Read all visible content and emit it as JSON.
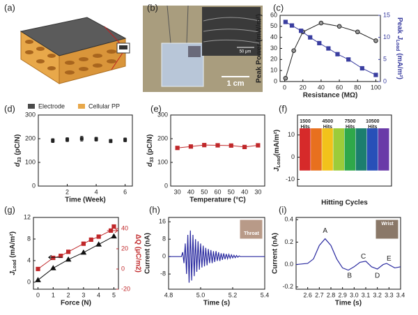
{
  "illustration": {
    "label": "(a)",
    "legend": [
      "Electrode",
      "Cellular PP"
    ]
  },
  "photo": {
    "label": "(b)",
    "inset_scale": "50 μm",
    "scale": "1 cm"
  },
  "chart_data": [
    {
      "type": "line",
      "panel": "(c)",
      "xlabel": "Resistance (MΩ)",
      "ylabel": "Peak Power (mW/m²)",
      "y2label": [
        {
          "t": "Peak "
        },
        {
          "t": "J",
          "s": "i"
        },
        {
          "t": "Load",
          "s": "sub"
        },
        {
          "t": " (mA/m²)"
        }
      ],
      "xlim": [
        -5,
        105
      ],
      "xticks": [
        0,
        20,
        40,
        60,
        80,
        100
      ],
      "ylim": [
        0,
        60
      ],
      "yticks": [
        0,
        10,
        20,
        30,
        40,
        50,
        60
      ],
      "y2lim": [
        0,
        15
      ],
      "y2ticks": [
        0,
        5,
        10,
        15
      ],
      "series": [
        {
          "color": "#222222",
          "marker": "circle",
          "x": [
            1,
            10,
            20,
            40,
            60,
            80,
            100
          ],
          "values": [
            3,
            28,
            45,
            53,
            50,
            45,
            37
          ]
        },
        {
          "color": "#3a3ea0",
          "marker": "square",
          "axis": "y2",
          "x": [
            1,
            8,
            18,
            28,
            38,
            48,
            58,
            70,
            85,
            100
          ],
          "values": [
            13.5,
            12.7,
            11.5,
            10,
            8.7,
            7.5,
            6.2,
            5,
            3,
            1.5
          ]
        }
      ]
    },
    {
      "type": "scatter",
      "panel": "(d)",
      "xlabel": "Time (Week)",
      "ylabel": [
        {
          "t": "d",
          "s": "i"
        },
        {
          "t": "33",
          "s": "sub"
        },
        {
          "t": " (pC/N)"
        }
      ],
      "xlim": [
        0,
        6.5
      ],
      "xticks": [
        2,
        4,
        6
      ],
      "ylim": [
        0,
        300
      ],
      "yticks": [
        0,
        100,
        200,
        300
      ],
      "color": "#222222",
      "x": [
        1,
        2,
        3,
        4,
        5,
        6
      ],
      "values": [
        192,
        196,
        200,
        198,
        190,
        195
      ],
      "errors": [
        8,
        8,
        10,
        8,
        7,
        8
      ]
    },
    {
      "type": "line",
      "panel": "(e)",
      "xlabel": "Temperature (°C)",
      "ylabel": [
        {
          "t": "d",
          "s": "i"
        },
        {
          "t": "33",
          "s": "sub"
        },
        {
          "t": " (pC/N)"
        }
      ],
      "categories": [
        "30",
        "40",
        "50",
        "60",
        "50",
        "40",
        "30"
      ],
      "ylim": [
        0,
        300
      ],
      "yticks": [
        0,
        100,
        200,
        300
      ],
      "series": [
        {
          "color": "#c0282a",
          "marker": "square",
          "values": [
            161,
            167,
            173,
            172,
            171,
            165,
            172
          ]
        }
      ]
    },
    {
      "type": "range_bar",
      "panel": "(f)",
      "xlabel": "Hitting Cycles",
      "ylabel": [
        {
          "t": "J",
          "s": "i"
        },
        {
          "t": "Load",
          "s": "sub"
        },
        {
          "t": "(mA/m²)"
        }
      ],
      "ylim": [
        -13,
        19
      ],
      "yticks": [
        -10,
        0,
        10
      ],
      "series": [
        {
          "color": "#d62a2a",
          "low": -6,
          "high": 13
        },
        {
          "color": "#e8701e",
          "low": -6,
          "high": 13
        },
        {
          "color": "#f2c21b",
          "low": -6,
          "high": 13
        },
        {
          "color": "#9ccc3a",
          "low": -6,
          "high": 13
        },
        {
          "color": "#2fa84a",
          "low": -6,
          "high": 13
        },
        {
          "color": "#1c7e6e",
          "low": -6,
          "high": 13
        },
        {
          "color": "#2850b8",
          "low": -6,
          "high": 13
        },
        {
          "color": "#6a3aa8",
          "low": -6,
          "high": 13
        }
      ],
      "annotations": [
        [
          "1500",
          "Hits"
        ],
        [
          "4500",
          "Hits"
        ],
        [
          "7500",
          "Hits"
        ],
        [
          "10500",
          "Hits"
        ]
      ]
    },
    {
      "type": "line",
      "panel": "(g)",
      "xlabel": "Force (N)",
      "ylabel": [
        {
          "t": "J",
          "s": "i"
        },
        {
          "t": "Load",
          "s": "sub"
        },
        {
          "t": " (mA/m²)"
        }
      ],
      "y2label": "ΔQ (μC/m2)",
      "xlim": [
        -0.3,
        5.3
      ],
      "xticks": [
        0,
        1,
        2,
        3,
        4,
        5
      ],
      "ylim": [
        -1.3,
        12
      ],
      "yticks": [
        0,
        4,
        8,
        12
      ],
      "y2lim": [
        -20,
        51
      ],
      "y2ticks": [
        -20,
        0,
        20,
        40
      ],
      "series": [
        {
          "color": "#111111",
          "marker": "triangle",
          "x": [
            0,
            1,
            2,
            3,
            4,
            5
          ],
          "values": [
            0.4,
            2.6,
            4.2,
            5.5,
            7,
            8.5
          ]
        },
        {
          "color": "#c0282a",
          "marker": "square",
          "axis": "y2",
          "x": [
            0,
            1,
            1.5,
            2,
            3,
            3.5,
            4,
            4.8,
            5
          ],
          "values": [
            0,
            11,
            13,
            17,
            25,
            29,
            32,
            38,
            42
          ]
        }
      ]
    },
    {
      "type": "line",
      "panel": "(h)",
      "xlabel": "Time (s)",
      "ylabel": "Current (nA)",
      "inset": "Throat",
      "xlim": [
        4.8,
        5.4
      ],
      "xticks": [
        4.8,
        {
          "value": 5,
          "label": "5.0"
        },
        5.2,
        5.4
      ],
      "ylim": [
        -15,
        18
      ],
      "yticks": [
        -8,
        0,
        8,
        16
      ],
      "series": [
        {
          "color": "#2a2aa0",
          "marker": "none",
          "x": [
            4.8,
            4.88,
            4.888,
            4.896,
            4.904,
            4.912,
            4.92,
            4.928,
            4.936,
            4.944,
            4.952,
            4.96,
            4.968,
            4.976,
            4.984,
            4.992,
            5.0,
            5.008,
            5.016,
            5.024,
            5.032,
            5.04,
            5.048,
            5.056,
            5.064,
            5.072,
            5.08,
            5.088,
            5.096,
            5.104,
            5.112,
            5.12,
            5.128,
            5.136,
            5.144,
            5.152,
            5.16,
            5.168,
            5.176,
            5.184,
            5.192,
            5.2,
            5.208,
            5.216,
            5.224,
            5.232,
            5.24,
            5.248,
            5.4
          ],
          "values": [
            0,
            0,
            2,
            -3,
            6,
            -8,
            10,
            -12,
            12,
            -11,
            10,
            -9,
            8,
            -7,
            7,
            -6,
            6,
            -5,
            5,
            -4.5,
            4,
            -4,
            3.5,
            -3,
            3,
            -3,
            2.5,
            -2.5,
            2.5,
            -2,
            2,
            -2,
            1.5,
            -1.5,
            1.5,
            -1.2,
            1.2,
            -1,
            1,
            -0.8,
            0.8,
            -0.6,
            0.6,
            -0.5,
            0.5,
            -0.3,
            0.3,
            0,
            0
          ]
        }
      ]
    },
    {
      "type": "line",
      "panel": "(i)",
      "xlabel": "Time (s)",
      "ylabel": "Current (nA)",
      "inset": "Wrist",
      "xlim": [
        2.5,
        3.4
      ],
      "xticks": [
        2.6,
        2.7,
        2.8,
        2.9,
        {
          "value": 3,
          "label": "3.0"
        },
        3.1,
        3.2,
        3.3,
        3.4
      ],
      "ylim": [
        -0.22,
        0.42
      ],
      "yticks": [
        -0.2,
        {
          "value": 0,
          "label": "0.0"
        },
        0.2,
        0.4
      ],
      "annotations": [
        "A",
        "B",
        "C",
        "D",
        "E"
      ],
      "series": [
        {
          "color": "#2a2aa0",
          "marker": "none",
          "x": [
            2.5,
            2.6,
            2.65,
            2.7,
            2.75,
            2.8,
            2.85,
            2.9,
            2.95,
            3.0,
            3.05,
            3.1,
            3.15,
            3.2,
            3.25,
            3.28,
            3.35,
            3.4
          ],
          "values": [
            0,
            0.01,
            0.05,
            0.17,
            0.23,
            0.17,
            0.05,
            -0.03,
            -0.05,
            -0.02,
            0.02,
            0.03,
            -0.02,
            -0.04,
            0,
            0.01,
            -0.03,
            -0.02
          ]
        }
      ]
    }
  ]
}
